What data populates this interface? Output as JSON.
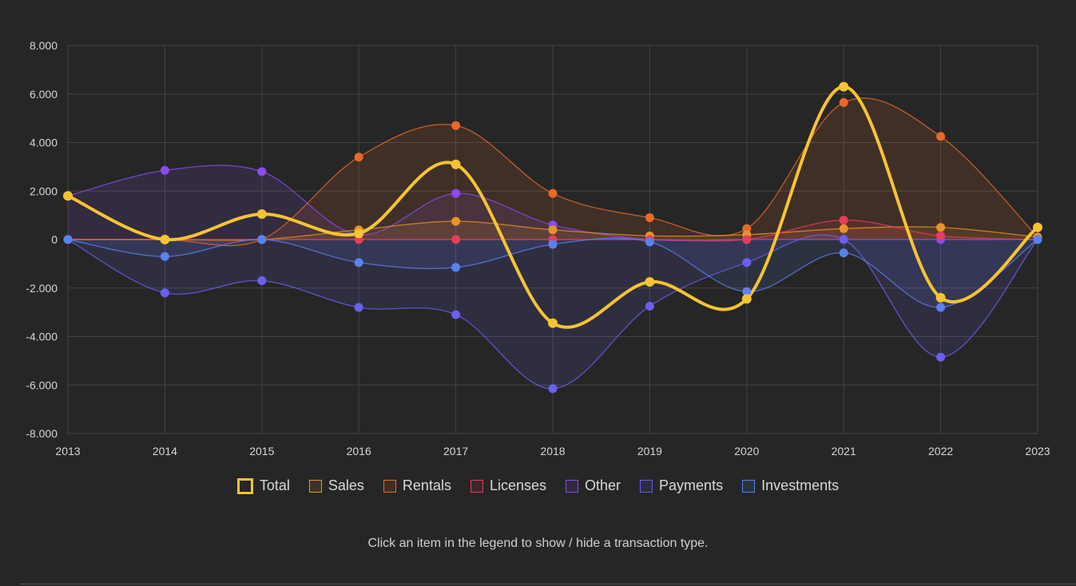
{
  "chart_data": {
    "type": "line",
    "title": "",
    "xlabel": "",
    "ylabel": "",
    "x": [
      "2013",
      "2014",
      "2015",
      "2016",
      "2017",
      "2018",
      "2019",
      "2020",
      "2021",
      "2022",
      "2023"
    ],
    "ylim": [
      -8000,
      8000
    ],
    "yticks": [
      8000,
      6000,
      4000,
      2000,
      0,
      -2000,
      -4000,
      -6000,
      -8000
    ],
    "ytick_labels": [
      "8.000",
      "6.000",
      "4.000",
      "2.000",
      "0",
      "-2.000",
      "-4.000",
      "-6.000",
      "-8.000"
    ],
    "grid": true,
    "legend_position": "bottom",
    "series": [
      {
        "name": "Other",
        "color": "#8a4bf0",
        "fill": true,
        "values": [
          1800,
          2850,
          2800,
          200,
          1900,
          600,
          0,
          0,
          0,
          0,
          0
        ]
      },
      {
        "name": "Rentals",
        "color": "#e8692a",
        "fill": true,
        "values": [
          0,
          0,
          0,
          3400,
          4700,
          1900,
          900,
          450,
          5650,
          4250,
          100
        ]
      },
      {
        "name": "Sales",
        "color": "#e8932a",
        "fill": true,
        "values": [
          0,
          0,
          0,
          400,
          750,
          400,
          150,
          200,
          450,
          500,
          100
        ]
      },
      {
        "name": "Licenses",
        "color": "#e83c5c",
        "fill": true,
        "values": [
          0,
          0,
          0,
          0,
          0,
          0,
          0,
          0,
          800,
          150,
          0
        ]
      },
      {
        "name": "Payments",
        "color": "#6a60f0",
        "fill": true,
        "values": [
          0,
          -2200,
          -1700,
          -2800,
          -3100,
          -6150,
          -2750,
          -950,
          0,
          -4850,
          0
        ]
      },
      {
        "name": "Investments",
        "color": "#5a82ee",
        "fill": true,
        "values": [
          0,
          -700,
          0,
          -950,
          -1150,
          -200,
          -100,
          -2150,
          -550,
          -2800,
          0
        ]
      },
      {
        "name": "Total",
        "color": "#f5c431",
        "fill": false,
        "values": [
          1800,
          0,
          1050,
          250,
          3100,
          -3450,
          -1750,
          -2450,
          6300,
          -2400,
          500
        ]
      }
    ]
  },
  "legend": {
    "items": [
      {
        "label": "Total",
        "color": "#f5c431"
      },
      {
        "label": "Sales",
        "color": "#e8932a"
      },
      {
        "label": "Rentals",
        "color": "#e8692a"
      },
      {
        "label": "Licenses",
        "color": "#e83c5c"
      },
      {
        "label": "Other",
        "color": "#8a4bf0"
      },
      {
        "label": "Payments",
        "color": "#6a60f0"
      },
      {
        "label": "Investments",
        "color": "#5a82ee"
      }
    ]
  },
  "hint_text": "Click an item in the legend to show / hide a transaction type.",
  "colors": {
    "background": "#262626",
    "grid": "#444444",
    "axis_text": "#d6d6d6"
  }
}
